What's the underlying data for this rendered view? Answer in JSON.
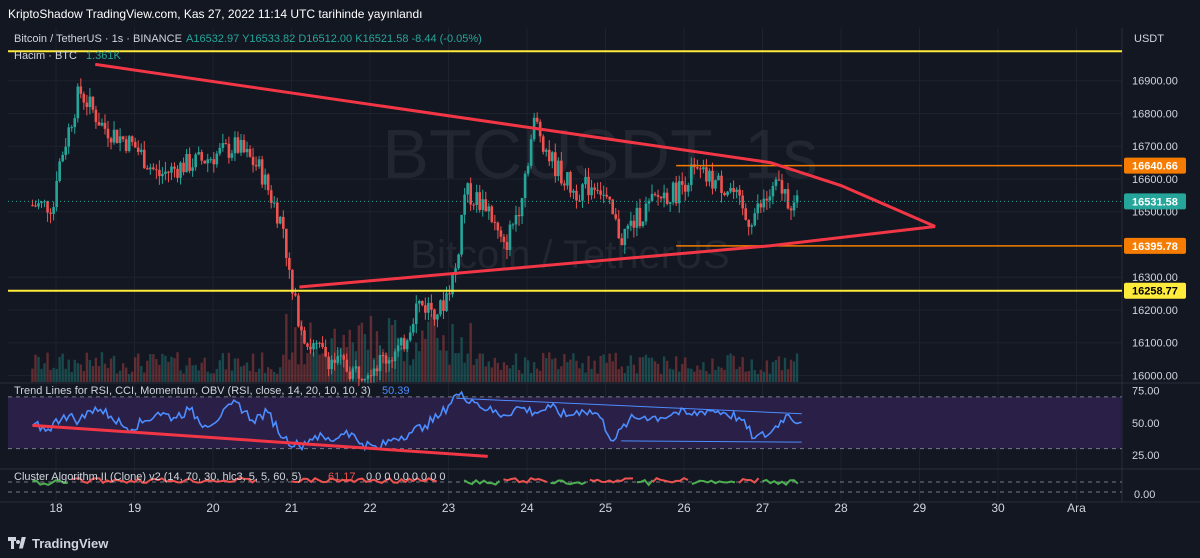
{
  "header": {
    "publisher": "KriptoShadow TradingView.com, Kas 27, 2022 11:14 UTC tarihinde yayınlandı"
  },
  "footer": {
    "brand": "TradingView",
    "logo_icon": "tradingview-logo-icon"
  },
  "colors": {
    "background": "#131722",
    "up": "#26a69a",
    "down": "#ef5350",
    "trendline": "#f23645",
    "horizontal": "#ffeb3b",
    "level_orange": "#f57c00",
    "price_label": "#26a69a",
    "rsi_line": "#2962ff",
    "rsi_band": "#2a1f47",
    "grid": "#1e222d"
  },
  "chart_data": [
    {
      "type": "candlestick",
      "symbol_label": "Bitcoin / TetherUS · 1s · BINANCE",
      "ohlc_label": "A16532.97 Y16533.82 D16512.00 K16521.58 -8.44 (-0.05%)",
      "volume_label": "Hacim · BTC",
      "volume_value": "1.361K",
      "watermark_main": "BTCUSDT, 1s",
      "watermark_sub": "Bitcoin / TetherUS",
      "currency": "USDT",
      "ylim": [
        15980,
        17000
      ],
      "y_ticks": [
        "16900.00",
        "16800.00",
        "16700.00",
        "16600.00",
        "16500.00",
        "16300.00",
        "16200.00",
        "16100.00",
        "16000.00"
      ],
      "x_ticks": [
        "18",
        "19",
        "20",
        "21",
        "22",
        "23",
        "24",
        "25",
        "26",
        "27",
        "28",
        "29",
        "30",
        "Ara"
      ],
      "price_levels": [
        {
          "label": "16640.66",
          "value": 16640.66,
          "color": "#f57c00"
        },
        {
          "label": "16531.58",
          "value": 16531.58,
          "color": "#26a69a"
        },
        {
          "label": "16395.78",
          "value": 16395.78,
          "color": "#f57c00"
        },
        {
          "label": "16258.77",
          "value": 16258.77,
          "color": "#ffeb3b"
        }
      ],
      "horizontal_lines": [
        16990,
        16258.77
      ],
      "triangle_upper": [
        [
          18.5,
          16950
        ],
        [
          27.1,
          16650
        ],
        [
          28,
          16580
        ]
      ],
      "triangle_lower": [
        [
          21.1,
          16270
        ],
        [
          27.1,
          16396
        ],
        [
          29.2,
          16455
        ]
      ],
      "triangle_apex": [
        29.2,
        16455
      ],
      "series_close_anchors": [
        [
          18.0,
          16610
        ],
        [
          18.3,
          16870
        ],
        [
          18.6,
          16760
        ],
        [
          19.0,
          16700
        ],
        [
          19.3,
          16610
        ],
        [
          19.6,
          16640
        ],
        [
          19.9,
          16660
        ],
        [
          20.3,
          16700
        ],
        [
          20.6,
          16630
        ],
        [
          20.9,
          16450
        ],
        [
          21.0,
          16250
        ],
        [
          21.2,
          16100
        ],
        [
          21.5,
          16050
        ],
        [
          21.8,
          16010
        ],
        [
          22.1,
          16040
        ],
        [
          22.4,
          16080
        ],
        [
          22.6,
          16220
        ],
        [
          22.9,
          16200
        ],
        [
          23.1,
          16330
        ],
        [
          23.2,
          16560
        ],
        [
          23.5,
          16520
        ],
        [
          23.7,
          16380
        ],
        [
          23.9,
          16520
        ],
        [
          24.1,
          16780
        ],
        [
          24.3,
          16660
        ],
        [
          24.6,
          16560
        ],
        [
          24.9,
          16590
        ],
        [
          25.2,
          16420
        ],
        [
          25.4,
          16480
        ],
        [
          25.7,
          16550
        ],
        [
          25.9,
          16560
        ],
        [
          26.1,
          16620
        ],
        [
          26.3,
          16600
        ],
        [
          26.6,
          16570
        ],
        [
          26.8,
          16470
        ],
        [
          27.0,
          16520
        ],
        [
          27.2,
          16580
        ],
        [
          27.4,
          16520
        ]
      ]
    },
    {
      "type": "line",
      "name": "RSI",
      "label": "Trend Lines for RSI, CCI, Momentum, OBV (RSI, close, 14, 20, 10, 10, 3)",
      "value_label": "50.39",
      "ylim": [
        15,
        80
      ],
      "y_ticks": [
        "75.00",
        "50.00",
        "25.00"
      ],
      "dashed_levels": [
        70,
        30
      ],
      "trendline_red": [
        [
          17.7,
          48
        ],
        [
          23.5,
          24
        ]
      ],
      "trendline_blue_upper": [
        [
          23.1,
          69
        ],
        [
          27.5,
          57
        ]
      ],
      "trendline_blue_lower": [
        [
          25.2,
          36
        ],
        [
          27.5,
          35
        ]
      ],
      "x": [
        17.7,
        17.9,
        18.1,
        18.3,
        18.5,
        18.7,
        18.9,
        19.1,
        19.3,
        19.5,
        19.7,
        19.9,
        20.1,
        20.3,
        20.5,
        20.7,
        20.9,
        21.1,
        21.3,
        21.5,
        21.7,
        21.9,
        22.1,
        22.3,
        22.5,
        22.7,
        22.9,
        23.1,
        23.3,
        23.5,
        23.7,
        23.9,
        24.1,
        24.3,
        24.5,
        24.7,
        24.9,
        25.1,
        25.3,
        25.5,
        25.7,
        25.9,
        26.1,
        26.3,
        26.5,
        26.7,
        26.9,
        27.1,
        27.3,
        27.5
      ],
      "values": [
        48,
        45,
        56,
        52,
        62,
        55,
        46,
        50,
        58,
        54,
        60,
        48,
        55,
        66,
        52,
        58,
        38,
        32,
        40,
        36,
        44,
        34,
        30,
        38,
        42,
        48,
        56,
        72,
        68,
        60,
        56,
        62,
        58,
        62,
        55,
        60,
        57,
        36,
        52,
        55,
        54,
        58,
        56,
        60,
        58,
        54,
        38,
        42,
        56,
        50.39
      ]
    },
    {
      "type": "line",
      "name": "Cluster",
      "label": "Cluster Algorithm II (Clone) v2 (14, 70, 30, hlc3, 5, 5, 60, 5)",
      "value_label": "61.17",
      "value_zeros": "0 0 0 0 0 0 0 0 0",
      "y_ticks": [
        "0.00"
      ],
      "segments_up": [
        [
          17.7,
          18.2
        ],
        [
          23.2,
          23.7
        ],
        [
          24.3,
          24.8
        ],
        [
          25.4,
          25.6
        ],
        [
          26.1,
          26.7
        ],
        [
          27.0,
          27.5
        ]
      ],
      "segments_down": [
        [
          18.2,
          20.6
        ],
        [
          21.0,
          22.9
        ],
        [
          23.7,
          24.3
        ],
        [
          24.8,
          25.4
        ],
        [
          25.6,
          26.1
        ],
        [
          26.7,
          27.0
        ]
      ]
    }
  ]
}
